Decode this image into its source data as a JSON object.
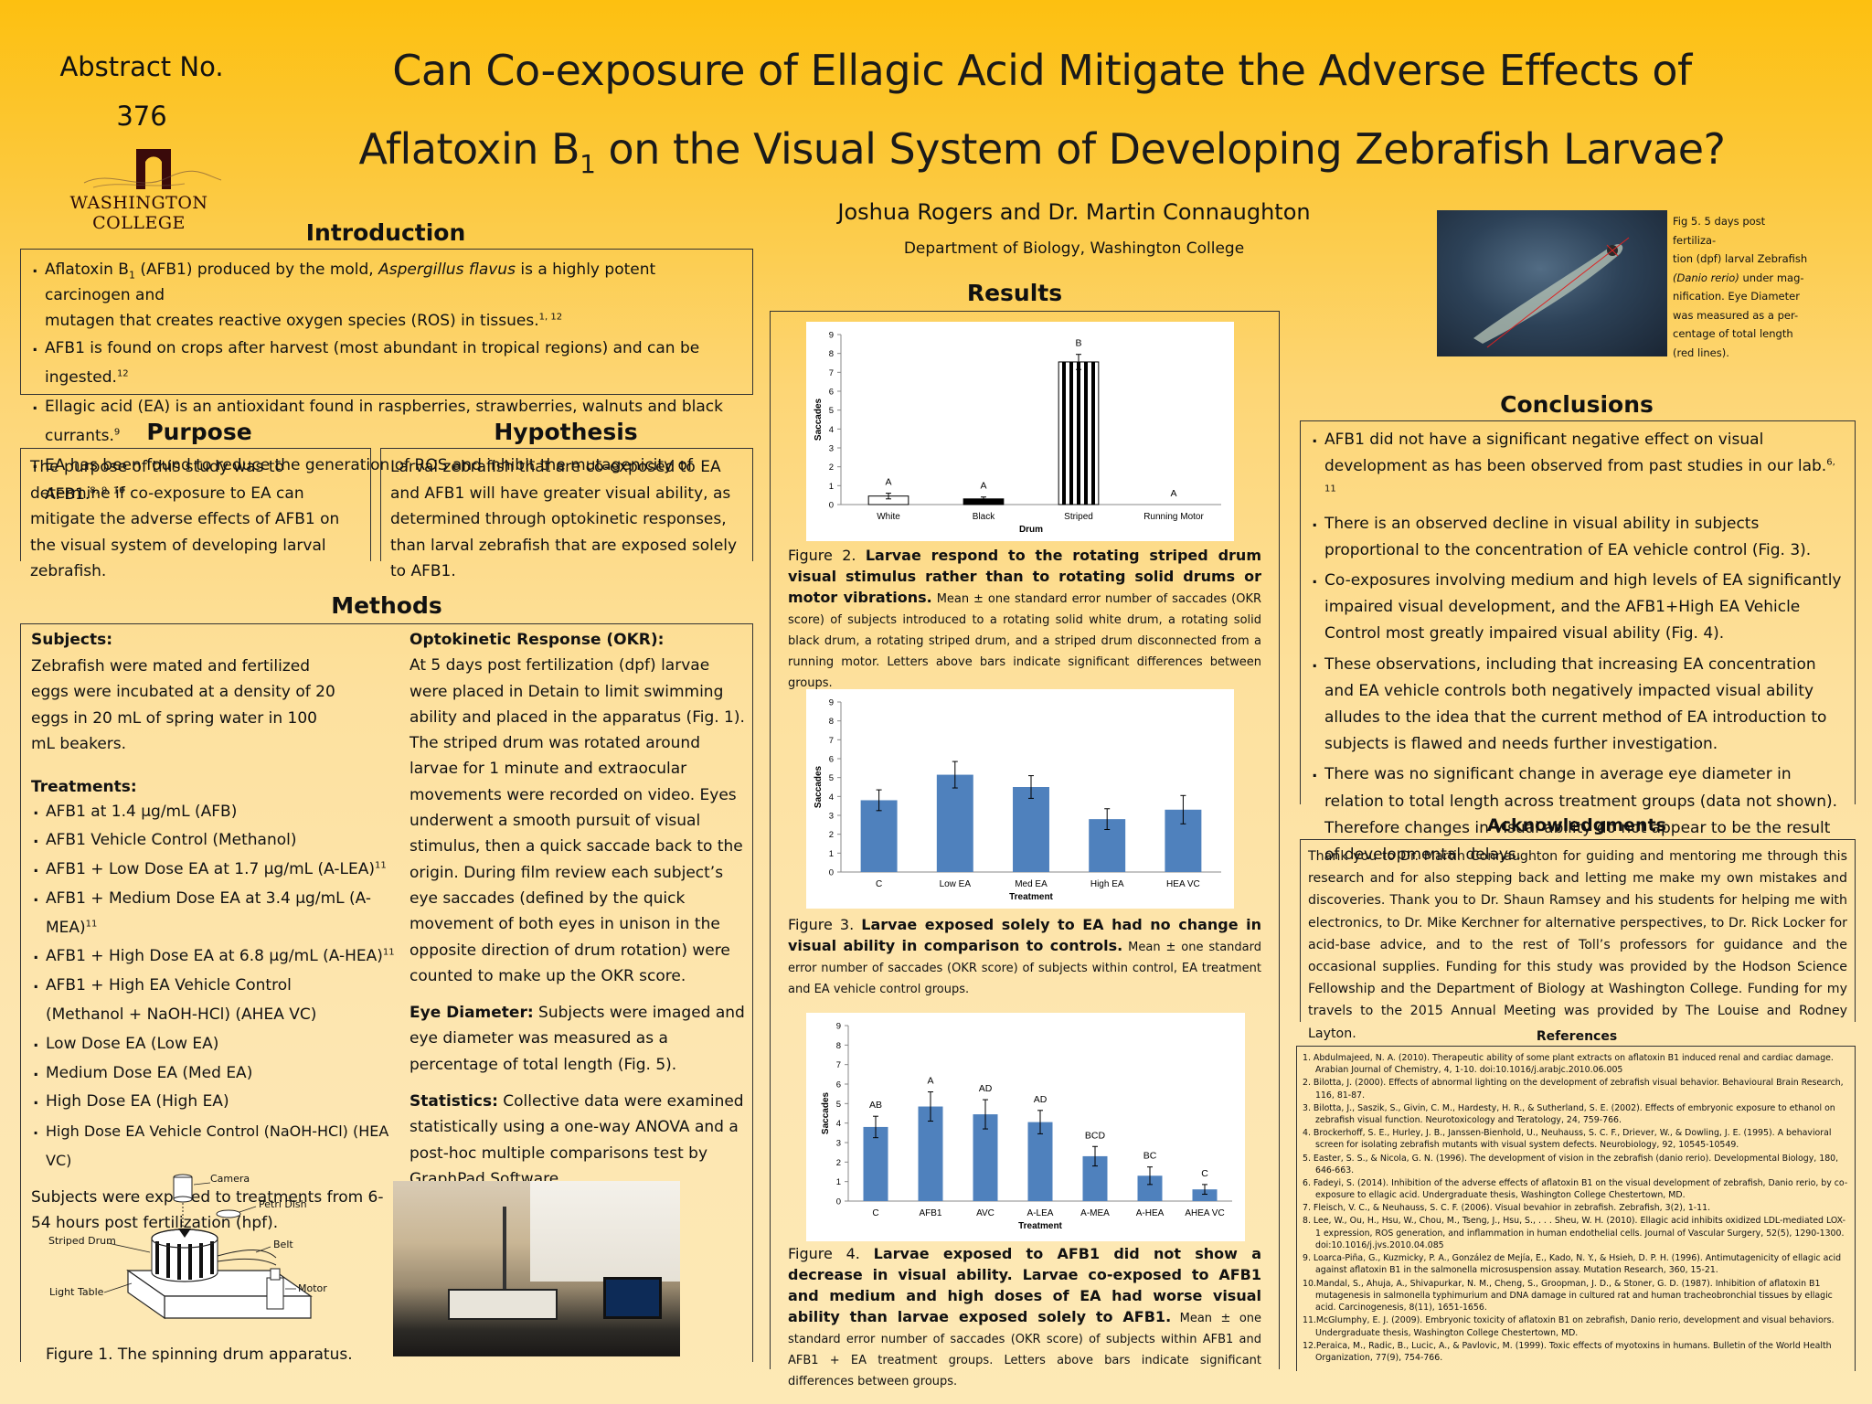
{
  "abstract": {
    "line1": "Abstract No.",
    "line2": "376"
  },
  "logo": {
    "text": "WASHINGTON COLLEGE"
  },
  "title": {
    "line1": "Can Co-exposure  of Ellagic Acid Mitigate the Adverse Effects of",
    "line2_pre": "Aflatoxin B",
    "line2_sub": "1",
    "line2_post": " on the Visual System of Developing Zebrafish Larvae?"
  },
  "authors": "Joshua Rogers and Dr. Martin Connaughton",
  "department": "Department of Biology, Washington College",
  "introduction": {
    "heading": "Introduction",
    "bullets": [
      {
        "pre": "Aflatoxin B",
        "sub": "1",
        "post": " (AFB1) produced by the mold, ",
        "em": "Aspergillus flavus",
        "post2": " is a highly potent carcinogen and",
        "line2": "mutagen that creates reactive oxygen species (ROS) in tissues.",
        "sup": "1, 12"
      },
      {
        "text": "AFB1 is found on crops after harvest (most abundant in tropical regions) and can be ingested.",
        "sup": "12"
      },
      {
        "text": "Ellagic acid (EA) is an antioxidant found in raspberries, strawberries, walnuts and black currants.",
        "sup": "9"
      },
      {
        "text": "EA has been found to reduce the generation of ROS and inhibit the mutagenicity of AFB1.",
        "sup": "8, 9, 10"
      }
    ]
  },
  "purpose": {
    "heading": "Purpose",
    "text": "The purpose of this study was to determine if co-exposure to EA can mitigate the adverse effects of AFB1 on the visual system of developing larval zebrafish."
  },
  "hypothesis": {
    "heading": "Hypothesis",
    "text": "Larval zebrafish that are co-exposed to EA and AFB1 will have greater visual ability, as determined through optokinetic responses, than larval zebrafish that are exposed solely to AFB1."
  },
  "methods": {
    "heading": "Methods",
    "subjects_heading": "Subjects:",
    "subjects_text": "Zebrafish were mated and fertilized eggs were incubated at a density of 20 eggs in 20 mL of spring water in 100 mL beakers.",
    "treatments_heading": "Treatments:",
    "treatments": [
      {
        "text": "AFB1 at 1.4 µg/mL (AFB)",
        "sup": ""
      },
      {
        "text": "AFB1 Vehicle Control (Methanol)",
        "sup": ""
      },
      {
        "text": "AFB1 + Low Dose EA at 1.7 µg/mL (A-LEA)",
        "sup": "11"
      },
      {
        "text": "AFB1 + Medium Dose EA at 3.4 µg/mL (A-MEA)",
        "sup": "11"
      },
      {
        "text": "AFB1 + High Dose EA at 6.8 µg/mL (A-HEA)",
        "sup": "11"
      },
      {
        "text": "AFB1 + High EA Vehicle Control",
        "sup": "",
        "line2": "(Methanol + NaOH-HCl) (AHEA VC)"
      },
      {
        "text": "Low Dose EA (Low EA)",
        "sup": ""
      },
      {
        "text": "Medium Dose EA (Med EA)",
        "sup": ""
      },
      {
        "text": "High Dose EA (High EA)",
        "sup": ""
      },
      {
        "text": "High Dose EA Vehicle Control (NaOH-HCl) (HEA VC)",
        "sup": ""
      }
    ],
    "exposure_text": "Subjects were exposed to treatments from 6-54 hours post fertilization (hpf).",
    "okr_heading": "Optokinetic Response (OKR):",
    "okr_text": "At 5 days post fertilization (dpf) larvae were placed in Detain to limit swimming ability and placed in the apparatus (Fig. 1).  The striped drum was rotated around larvae for 1 minute and extraocular movements were recorded on video.  Eyes underwent a smooth pursuit of visual stimulus, then a quick saccade back to the origin. During film review each subject’s eye saccades (defined by the quick movement of both eyes in unison in the opposite direction of drum rotation) were counted to make up the OKR score.",
    "eye_heading": "Eye Diameter:",
    "eye_text": " Subjects were imaged and eye diameter was measured as a percentage of total length (Fig. 5).",
    "stats_heading": "Statistics:",
    "stats_text": " Collective data were examined statistically using a one-way ANOVA and a post-hoc multiple comparisons test by GraphPad Software.",
    "fig1_labels": {
      "camera": "Camera",
      "petri": "Petri Dish",
      "drum": "Striped Drum",
      "belt": "Belt",
      "table": "Light Table",
      "motor": "Motor"
    },
    "fig1_caption": "Figure 1. The spinning drum apparatus."
  },
  "results": {
    "heading": "Results"
  },
  "fig2": {
    "caption_pre": "Figure 2. ",
    "caption_bold": "Larvae respond to the rotating striped drum visual stimulus rather than to rotating solid drums or motor vibrations.",
    "caption_small": " Mean ± one standard error number of saccades (OKR score) of subjects introduced to a rotating solid white drum, a rotating solid black drum, a rotating striped drum, and a striped drum disconnected from a running motor. Letters above bars indicate significant differences between groups."
  },
  "fig3": {
    "caption_pre": "Figure 3. ",
    "caption_bold": "Larvae exposed solely to EA had no change in visual ability in comparison to controls.",
    "caption_small": " Mean ± one standard error number of saccades (OKR score) of subjects within control, EA treatment and EA vehicle control groups."
  },
  "fig4": {
    "caption_pre": "Figure 4. ",
    "caption_bold": "Larvae exposed to AFB1 did not show a decrease in visual ability. Larvae co-exposed to AFB1 and medium and high doses of EA had worse visual ability than larvae exposed solely to AFB1.",
    "caption_small": " Mean ± one standard error number of saccades (OKR score) of subjects within AFB1 and AFB1 + EA treatment groups. Letters above bars indicate significant differences between groups."
  },
  "fig5": {
    "caption_l1": "Fig 5. 5 days post fertiliza-",
    "caption_l2": "tion (dpf) larval Zebrafish",
    "caption_l3": "(Danio rerio)",
    "caption_l3b": " under mag-",
    "caption_l4": "nification. Eye Diameter",
    "caption_l5": "was measured as a per-",
    "caption_l6": "centage of total length",
    "caption_l7": "(red lines)."
  },
  "conclusions": {
    "heading": "Conclusions",
    "bullets": [
      {
        "text": "AFB1 did not have a significant negative effect on visual development  as has been observed from past studies in our lab.",
        "sup": "6, 11"
      },
      {
        "text": "There is an observed decline in visual ability in subjects proportional to the concentration of EA vehicle control (Fig. 3).",
        "sup": ""
      },
      {
        "text": "Co-exposures involving medium and high levels of EA significantly impaired visual development, and the AFB1+High EA Vehicle Control most greatly impaired visual ability (Fig. 4).",
        "sup": ""
      },
      {
        "text": "These observations, including that increasing EA concentration and EA vehicle controls  both negatively impacted visual ability alludes to the idea that the current method of EA introduction to subjects is flawed and needs further investigation.",
        "sup": ""
      },
      {
        "text": "There was no significant change in average eye diameter in relation to total length across treatment groups (data not shown). Therefore changes in visual ability do not appear to be the result of developmental delays.",
        "sup": ""
      }
    ]
  },
  "acknowledgments": {
    "heading": "Acknowledgments",
    "text": "Thank you to Dr. Martin Connaughton for guiding and mentoring me through this research and for also stepping back and letting me make my own mistakes and discoveries. Thank you to Dr. Shaun Ramsey and his students for helping me with electronics, to Dr. Mike Kerchner for alternative perspectives, to Dr. Rick Locker for acid-base advice, and to the rest of Toll’s professors for guidance and the occasional supplies. Funding for this study was provided by the Hodson Science Fellowship and the Department of Biology at Washington College. Funding for my travels to the 2015 Annual Meeting was provided by The Louise and Rodney Layton."
  },
  "references": {
    "heading": "References",
    "items": [
      "1. Abdulmajeed, N. A. (2010). Therapeutic ability of some plant extracts on aflatoxin B1 induced renal and cardiac damage. Arabian Journal of Chemistry, 4, 1-10. doi:10.1016/j.arabjc.2010.06.005",
      "2. Bilotta, J. (2000). Effects of abnormal lighting on the development of zebrafish visual behavior. Behavioural Brain Research, 116, 81-87.",
      "3. Bilotta, J., Saszik, S., Givin, C. M., Hardesty, H. R., & Sutherland, S. E. (2002). Effects of embryonic exposure to ethanol on zebrafish visual function. Neurotoxicology and Teratology, 24, 759-766.",
      "4. Brockerhoff, S. E., Hurley, J. B., Janssen-Bienhold, U., Neuhauss, S. C. F., Driever, W., & Dowling, J. E. (1995). A behavioral screen for isolating zebrafish mutants with visual system defects. Neurobiology, 92, 10545-10549.",
      "5. Easter, S. S., & Nicola, G. N. (1996). The development of vision in the zebrafish (danio rerio). Developmental Biology, 180, 646-663.",
      "6. Fadeyi, S. (2014). Inhibition of the adverse effects of aflatoxin B1 on the visual development of zebrafish, Danio rerio, by co-exposure to ellagic acid. Undergraduate thesis, Washington College Chestertown, MD.",
      "7. Fleisch, V. C., & Neuhauss, S. C. F. (2006). Visual bevahior in zebrafish. Zebrafish, 3(2), 1-11.",
      "8. Lee, W., Ou, H., Hsu, W., Chou, M., Tseng, J., Hsu, S., . . . Sheu, W. H. (2010). Ellagic acid inhibits oxidized LDL-mediated LOX-1 expression, ROS generation, and inflammation in human endothelial cells. Journal of Vascular Surgery, 52(5), 1290-1300. doi:10.1016/j.jvs.2010.04.085",
      "9. Loarca-Piña, G., Kuzmicky, P. A., González de Mejía, E., Kado, N. Y., & Hsieh, D. P. H. (1996). Antimutagenicity of ellagic acid against aflatoxin B1 in the salmonella microsuspension assay. Mutation Research, 360, 15-21.",
      "10.Mandal, S., Ahuja, A., Shivapurkar, N. M., Cheng, S., Groopman, J. D., & Stoner, G. D. (1987). Inhibition of aflatoxin B1 mutagenesis in salmonella typhimurium and DNA damage in cultured rat and human tracheobronchial tissues by ellagic acid. Carcinogenesis, 8(11), 1651-1656.",
      "11.McGlumphy, E. J. (2009). Embryonic toxicity of aflatoxin B1 on zebrafish, Danio rerio, development and visual behaviors. Undergraduate thesis, Washington College Chestertown, MD.",
      "12.Peraica, M., Radic, B., Lucic, A., & Pavlovic, M. (1999). Toxic effects of myotoxins in humans. Bulletin of the World Health Organization, 77(9), 754-766."
    ]
  },
  "chart_data": [
    {
      "type": "bar",
      "figure": "Figure 2",
      "categories": [
        "White",
        "Black",
        "Striped",
        "Running Motor"
      ],
      "values": [
        0.45,
        0.3,
        7.55,
        0.0
      ],
      "errors": [
        0.15,
        0.1,
        0.4,
        0.0
      ],
      "letters": [
        "A",
        "A",
        "B",
        "A"
      ],
      "patterns": [
        "white",
        "black",
        "striped",
        "none"
      ],
      "xlabel": "Drum",
      "ylabel": "Saccades",
      "ylim": [
        0,
        9
      ],
      "yticks": [
        "0",
        "1",
        "2",
        "3",
        "4",
        "5",
        "6",
        "7",
        "8",
        "9"
      ],
      "grid": false
    },
    {
      "type": "bar",
      "figure": "Figure 3",
      "categories": [
        "C",
        "Low EA",
        "Med EA",
        "High EA",
        "HEA VC"
      ],
      "values": [
        3.8,
        5.15,
        4.5,
        2.8,
        3.3
      ],
      "errors": [
        0.55,
        0.7,
        0.6,
        0.55,
        0.75
      ],
      "color": "#4f81bd",
      "xlabel": "Treatment",
      "ylabel": "Saccades",
      "ylim": [
        0,
        9
      ],
      "yticks": [
        "0",
        "1",
        "2",
        "3",
        "4",
        "5",
        "6",
        "7",
        "8",
        "9"
      ],
      "grid": false
    },
    {
      "type": "bar",
      "figure": "Figure 4",
      "categories": [
        "C",
        "AFB1",
        "AVC",
        "A-LEA",
        "A-MEA",
        "A-HEA",
        "AHEA VC"
      ],
      "values": [
        3.8,
        4.85,
        4.45,
        4.05,
        2.3,
        1.3,
        0.6
      ],
      "errors": [
        0.55,
        0.75,
        0.75,
        0.6,
        0.5,
        0.45,
        0.25
      ],
      "letters": [
        "AB",
        "A",
        "AD",
        "AD",
        "BCD",
        "BC",
        "C"
      ],
      "color": "#4f81bd",
      "xlabel": "Treatment",
      "ylabel": "Saccades",
      "ylim": [
        0,
        9
      ],
      "yticks": [
        "0",
        "1",
        "2",
        "3",
        "4",
        "5",
        "6",
        "7",
        "8",
        "9"
      ],
      "grid": false
    }
  ]
}
